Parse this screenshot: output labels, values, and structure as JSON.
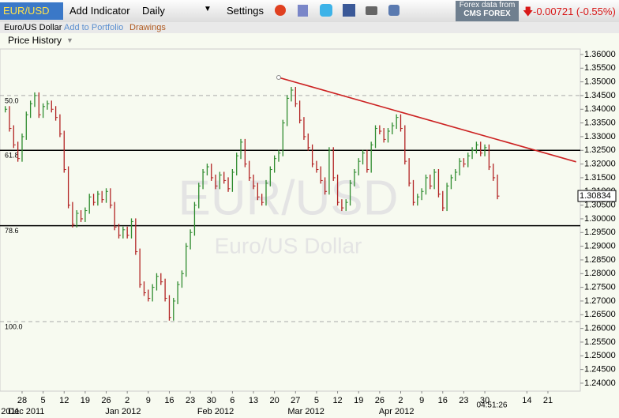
{
  "toolbar": {
    "symbol": "EUR/USD",
    "add_indicator": "Add Indicator",
    "interval": "Daily",
    "settings": "Settings",
    "source": "Forex data from",
    "provider": "CMS FOREX",
    "change": "-0.00721 (-0.55%)"
  },
  "subbar": {
    "name": "Euro/US Dollar",
    "portfolio": "Add to Portfolio",
    "drawings": "Drawings"
  },
  "chart_data": {
    "type": "ohlc",
    "title": "Price History",
    "watermark": "EUR/USD",
    "watermark_sub": "Euro/US Dollar",
    "x": [
      -4,
      -3,
      -2,
      -1,
      0,
      1,
      2,
      3,
      4,
      5,
      6,
      7,
      8,
      9,
      10,
      11,
      12,
      13,
      14,
      15,
      16,
      17,
      18,
      19,
      20,
      21,
      22,
      23,
      24,
      25,
      26,
      27,
      28,
      29,
      30,
      31,
      32,
      33,
      34,
      35,
      36,
      37,
      38,
      39,
      40,
      41,
      42,
      43,
      44,
      45,
      46,
      47,
      48,
      49,
      50,
      51,
      52,
      53,
      54,
      55,
      56,
      57,
      58,
      59,
      60,
      61,
      62,
      63,
      64,
      65,
      66,
      67,
      68,
      69,
      70,
      71,
      72,
      73,
      74,
      75,
      76,
      77,
      78,
      79,
      80,
      81,
      82,
      83,
      84,
      85,
      86,
      87,
      88,
      89,
      90,
      91,
      92,
      93,
      94,
      95,
      96,
      97,
      98,
      99,
      100,
      101,
      102,
      103,
      104,
      105,
      106,
      107,
      108,
      109,
      110,
      111,
      112,
      113
    ],
    "values": [
      1.34,
      1.333,
      1.327,
      1.322,
      1.33,
      1.338,
      1.342,
      1.345,
      1.338,
      1.341,
      1.342,
      1.34,
      1.337,
      1.331,
      1.318,
      1.305,
      1.298,
      1.302,
      1.3,
      1.303,
      1.308,
      1.306,
      1.309,
      1.307,
      1.31,
      1.305,
      1.297,
      1.294,
      1.296,
      1.294,
      1.299,
      1.288,
      1.276,
      1.273,
      1.271,
      1.275,
      1.279,
      1.277,
      1.271,
      1.264,
      1.27,
      1.276,
      1.28,
      1.29,
      1.295,
      1.305,
      1.312,
      1.317,
      1.319,
      1.315,
      1.312,
      1.316,
      1.314,
      1.311,
      1.317,
      1.323,
      1.328,
      1.32,
      1.315,
      1.312,
      1.308,
      1.306,
      1.313,
      1.318,
      1.322,
      1.324,
      1.335,
      1.344,
      1.347,
      1.342,
      1.336,
      1.33,
      1.326,
      1.32,
      1.318,
      1.314,
      1.31,
      1.325,
      1.315,
      1.306,
      1.304,
      1.306,
      1.313,
      1.317,
      1.321,
      1.324,
      1.318,
      1.327,
      1.333,
      1.332,
      1.329,
      1.332,
      1.334,
      1.337,
      1.333,
      1.321,
      1.313,
      1.306,
      1.308,
      1.31,
      1.315,
      1.312,
      1.317,
      1.309,
      1.304,
      1.312,
      1.315,
      1.317,
      1.321,
      1.32,
      1.323,
      1.325,
      1.327,
      1.324,
      1.326,
      1.319,
      1.315,
      1.3083
    ],
    "up_color": "#2e8b2e",
    "down_color": "#b22222",
    "last": {
      "value": 1.30834,
      "label": "1.30834"
    },
    "xlim": [
      -5.25,
      132.7
    ],
    "xticks": [
      {
        "value": 0,
        "label": "28"
      },
      {
        "value": 5,
        "label": "5"
      },
      {
        "value": 10,
        "label": "12"
      },
      {
        "value": 15,
        "label": "19"
      },
      {
        "value": 20,
        "label": "26"
      },
      {
        "value": 25,
        "label": "2"
      },
      {
        "value": 30,
        "label": "9"
      },
      {
        "value": 35,
        "label": "16"
      },
      {
        "value": 40,
        "label": "23"
      },
      {
        "value": 45,
        "label": "30"
      },
      {
        "value": 50,
        "label": "6"
      },
      {
        "value": 55,
        "label": "13"
      },
      {
        "value": 60,
        "label": "20"
      },
      {
        "value": 65,
        "label": "27"
      },
      {
        "value": 70,
        "label": "5"
      },
      {
        "value": 75,
        "label": "12"
      },
      {
        "value": 80,
        "label": "19"
      },
      {
        "value": 85,
        "label": "26"
      },
      {
        "value": 90,
        "label": "2"
      },
      {
        "value": 95,
        "label": "9"
      },
      {
        "value": 100,
        "label": "16"
      },
      {
        "value": 105,
        "label": "23"
      },
      {
        "value": 110,
        "label": "30"
      },
      {
        "value": 120,
        "label": "14"
      },
      {
        "value": 125,
        "label": "21"
      }
    ],
    "month_labels": [
      {
        "value": -2.8,
        "label": "2011"
      },
      {
        "value": 1,
        "label": "Dec 2011"
      },
      {
        "value": 24,
        "label": "Jan 2012"
      },
      {
        "value": 46,
        "label": "Feb 2012"
      },
      {
        "value": 67.5,
        "label": "Mar 2012"
      },
      {
        "value": 89,
        "label": "Apr 2012"
      }
    ],
    "time": "04:51:26",
    "ylim": [
      1.2371,
      1.362
    ],
    "yticks": [
      {
        "value": 1.24,
        "label": "1.24000"
      },
      {
        "value": 1.245,
        "label": "1.24500"
      },
      {
        "value": 1.25,
        "label": "1.25000"
      },
      {
        "value": 1.255,
        "label": "1.25500"
      },
      {
        "value": 1.26,
        "label": "1.26000"
      },
      {
        "value": 1.265,
        "label": "1.26500"
      },
      {
        "value": 1.27,
        "label": "1.27000"
      },
      {
        "value": 1.275,
        "label": "1.27500"
      },
      {
        "value": 1.28,
        "label": "1.28000"
      },
      {
        "value": 1.285,
        "label": "1.28500"
      },
      {
        "value": 1.29,
        "label": "1.29000"
      },
      {
        "value": 1.295,
        "label": "1.29500"
      },
      {
        "value": 1.3,
        "label": "1.30000"
      },
      {
        "value": 1.305,
        "label": "1.30500"
      },
      {
        "value": 1.31,
        "label": "1.31000"
      },
      {
        "value": 1.315,
        "label": "1.31500"
      },
      {
        "value": 1.32,
        "label": "1.32000"
      },
      {
        "value": 1.325,
        "label": "1.32500"
      },
      {
        "value": 1.33,
        "label": "1.33000"
      },
      {
        "value": 1.335,
        "label": "1.33500"
      },
      {
        "value": 1.34,
        "label": "1.34000"
      },
      {
        "value": 1.345,
        "label": "1.34500"
      },
      {
        "value": 1.35,
        "label": "1.35000"
      },
      {
        "value": 1.355,
        "label": "1.35500"
      },
      {
        "value": 1.36,
        "label": "1.36000"
      }
    ],
    "fib_levels": [
      {
        "value": 1.345,
        "label": "50.0",
        "dashed": true
      },
      {
        "value": 1.325,
        "label": "61.8",
        "dashed": false
      },
      {
        "value": 1.2975,
        "label": "78.6",
        "dashed": false
      },
      {
        "value": 1.2625,
        "label": "100.0",
        "dashed": true
      }
    ],
    "trendline": {
      "x": [
        61,
        131.7
      ],
      "y": [
        1.3516,
        1.3208
      ],
      "color": "#cc2222"
    }
  }
}
